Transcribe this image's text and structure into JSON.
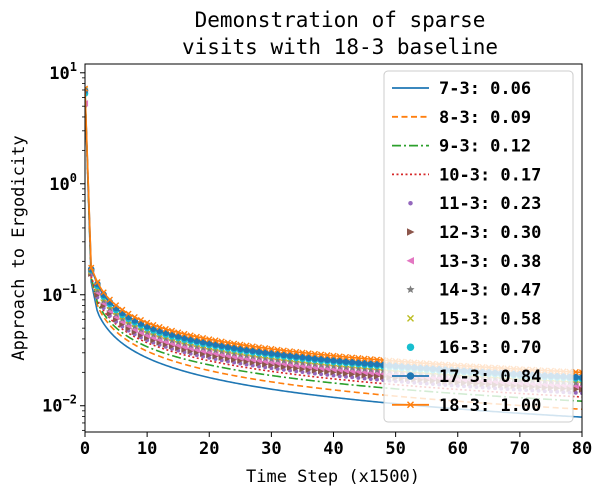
{
  "chart_data": {
    "type": "line",
    "title_lines": [
      "Demonstration of sparse",
      "visits with 18-3 baseline"
    ],
    "xlabel": "Time Step (x1500)",
    "ylabel": "Approach to Ergodicity",
    "xlim": [
      0,
      80
    ],
    "ylim": [
      0.0058,
      12
    ],
    "y_scale": "log",
    "x_ticks": [
      0,
      10,
      20,
      30,
      40,
      50,
      60,
      70,
      80
    ],
    "x_tick_labels": [
      "0",
      "10",
      "20",
      "30",
      "40",
      "50",
      "60",
      "70",
      "80"
    ],
    "y_ticks": [
      0.01,
      0.1,
      1,
      10
    ],
    "y_tick_labels": [
      {
        "base": "10",
        "exp": "−2"
      },
      {
        "base": "10",
        "exp": "−1"
      },
      {
        "base": "10",
        "exp": "0"
      },
      {
        "base": "10",
        "exp": "1"
      }
    ],
    "legend_position": "right",
    "series": [
      {
        "name": "7-3: 0.06",
        "color": "#1f77b4",
        "style": "solid",
        "marker": "none",
        "start": 6.5,
        "y1": 0.13,
        "y2": 0.07,
        "y10": 0.027,
        "y80": 0.0079
      },
      {
        "name": "8-3: 0.09",
        "color": "#ff7f0e",
        "style": "dashed",
        "marker": "none",
        "start": 6.6,
        "y1": 0.14,
        "y2": 0.08,
        "y10": 0.031,
        "y80": 0.0093
      },
      {
        "name": "9-3: 0.12",
        "color": "#2ca02c",
        "style": "dashdot",
        "marker": "none",
        "start": 6.7,
        "y1": 0.145,
        "y2": 0.085,
        "y10": 0.034,
        "y80": 0.011
      },
      {
        "name": "10-3: 0.17",
        "color": "#d62728",
        "style": "dotted",
        "marker": "none",
        "start": 6.8,
        "y1": 0.15,
        "y2": 0.09,
        "y10": 0.037,
        "y80": 0.012
      },
      {
        "name": "11-3: 0.23",
        "color": "#9467bd",
        "style": "none",
        "marker": "dot",
        "start": 5.0,
        "y1": 0.152,
        "y2": 0.095,
        "y10": 0.039,
        "y80": 0.013
      },
      {
        "name": "12-3: 0.30",
        "color": "#8c564b",
        "style": "none",
        "marker": "triangle-right",
        "start": 6.9,
        "y1": 0.155,
        "y2": 0.1,
        "y10": 0.041,
        "y80": 0.014
      },
      {
        "name": "13-3: 0.38",
        "color": "#e377c2",
        "style": "none",
        "marker": "triangle-left",
        "start": 5.3,
        "y1": 0.158,
        "y2": 0.105,
        "y10": 0.043,
        "y80": 0.015
      },
      {
        "name": "14-3: 0.47",
        "color": "#7f7f7f",
        "style": "none",
        "marker": "star",
        "start": 7.0,
        "y1": 0.16,
        "y2": 0.11,
        "y10": 0.046,
        "y80": 0.016
      },
      {
        "name": "15-3: 0.58",
        "color": "#bcbd22",
        "style": "none",
        "marker": "x",
        "start": 7.0,
        "y1": 0.163,
        "y2": 0.115,
        "y10": 0.048,
        "y80": 0.017
      },
      {
        "name": "16-3: 0.70",
        "color": "#17becf",
        "style": "none",
        "marker": "circle",
        "start": 6.5,
        "y1": 0.167,
        "y2": 0.12,
        "y10": 0.05,
        "y80": 0.0175
      },
      {
        "name": "17-3: 0.84",
        "color": "#1f77b4",
        "style": "solid",
        "marker": "circle",
        "start": 6.9,
        "y1": 0.17,
        "y2": 0.125,
        "y10": 0.052,
        "y80": 0.018
      },
      {
        "name": "18-3: 1.00",
        "color": "#ff7f0e",
        "style": "solid",
        "marker": "x",
        "start": 7.2,
        "y1": 0.175,
        "y2": 0.13,
        "y10": 0.056,
        "y80": 0.02
      }
    ]
  }
}
